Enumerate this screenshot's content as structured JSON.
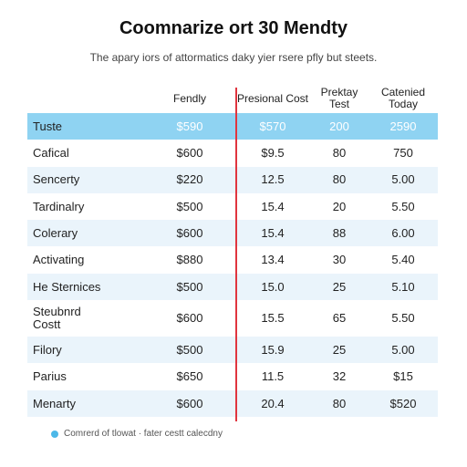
{
  "title": "Coomnarize ort 30 Mendty",
  "subtitle": "The apary iors of attormatics daky yier rsere pfly but steets.",
  "table": {
    "headers": [
      "",
      "Fendly",
      "Presional Cost",
      "Prektay Test",
      "Catenied Today"
    ],
    "rows": [
      {
        "label": "Tuste",
        "values": [
          "$590",
          "$570",
          "200",
          "2590"
        ]
      },
      {
        "label": "Cafical",
        "values": [
          "$600",
          "$9.5",
          "80",
          "750"
        ]
      },
      {
        "label": "Sencerty",
        "values": [
          "$220",
          "12.5",
          "80",
          "5.00"
        ]
      },
      {
        "label": "Tardinalry",
        "values": [
          "$500",
          "15.4",
          "20",
          "5.50"
        ]
      },
      {
        "label": "Colerary",
        "values": [
          "$600",
          "15.4",
          "88",
          "6.00"
        ]
      },
      {
        "label": "Activating",
        "values": [
          "$880",
          "13.4",
          "30",
          "5.40"
        ]
      },
      {
        "label": "He Sternices",
        "values": [
          "$500",
          "15.0",
          "25",
          "5.10"
        ]
      },
      {
        "label": "Steubnrd Costt",
        "values": [
          "$600",
          "15.5",
          "65",
          "5.50"
        ]
      },
      {
        "label": "Filory",
        "values": [
          "$500",
          "15.9",
          "25",
          "5.00"
        ]
      },
      {
        "label": "Parius",
        "values": [
          "$650",
          "11.5",
          "32",
          "$15"
        ]
      },
      {
        "label": "Menarty",
        "values": [
          "$600",
          "20.4",
          "80",
          "$520"
        ]
      }
    ]
  },
  "legend": {
    "text": "Comrerd of tlowat · fater cestt calecdny",
    "color": "#4cb8e8"
  },
  "colors": {
    "highlight_row": "#8fd3f2",
    "stripe": "#eaf4fb",
    "divider": "#e0353f"
  }
}
